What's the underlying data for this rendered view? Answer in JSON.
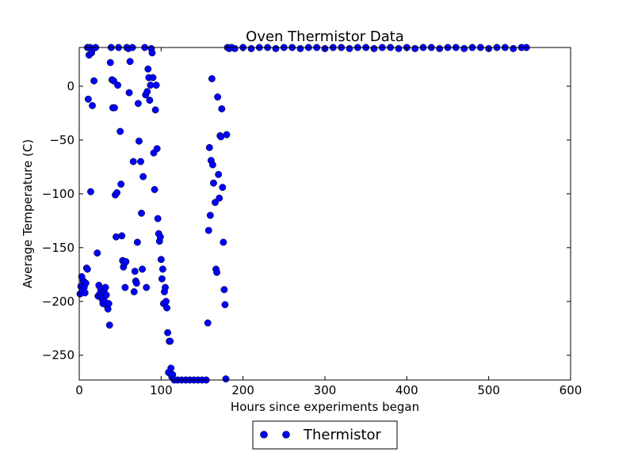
{
  "chart_data": {
    "type": "scatter",
    "title": "Oven Thermistor Data",
    "xlabel": "Hours since experiments began",
    "ylabel": "Average Temperature (C)",
    "xlim": [
      0,
      600
    ],
    "ylim": [
      -273,
      36
    ],
    "xticks": [
      0,
      100,
      200,
      300,
      400,
      500,
      600
    ],
    "yticks": [
      0,
      -50,
      -100,
      -150,
      -200,
      -250
    ],
    "grid": false,
    "legend_position": "below-center",
    "series": [
      {
        "name": "Thermistor",
        "color": "#0000ff",
        "marker": "circle",
        "points": [
          [
            1,
            -193
          ],
          [
            2,
            -186
          ],
          [
            3,
            -177
          ],
          [
            4,
            -190
          ],
          [
            5,
            -181
          ],
          [
            6,
            -187
          ],
          [
            7,
            -192
          ],
          [
            8,
            -183
          ],
          [
            9,
            -169
          ],
          [
            10,
            -170
          ],
          [
            10,
            36
          ],
          [
            11,
            -12
          ],
          [
            12,
            29
          ],
          [
            13,
            36
          ],
          [
            14,
            -98
          ],
          [
            15,
            31
          ],
          [
            16,
            -18
          ],
          [
            17,
            35
          ],
          [
            18,
            5
          ],
          [
            20,
            36
          ],
          [
            22,
            -155
          ],
          [
            23,
            -195
          ],
          [
            24,
            -185
          ],
          [
            25,
            -193
          ],
          [
            26,
            -188
          ],
          [
            27,
            -196
          ],
          [
            28,
            -198
          ],
          [
            29,
            -202
          ],
          [
            30,
            -190
          ],
          [
            31,
            -200
          ],
          [
            32,
            -187
          ],
          [
            33,
            -194
          ],
          [
            34,
            -204
          ],
          [
            35,
            -207
          ],
          [
            36,
            -202
          ],
          [
            37,
            -222
          ],
          [
            38,
            22
          ],
          [
            39,
            36
          ],
          [
            40,
            6
          ],
          [
            41,
            -20
          ],
          [
            42,
            5
          ],
          [
            43,
            -20
          ],
          [
            44,
            -101
          ],
          [
            45,
            -140
          ],
          [
            46,
            -99
          ],
          [
            47,
            1
          ],
          [
            48,
            36
          ],
          [
            50,
            -42
          ],
          [
            51,
            -91
          ],
          [
            52,
            -139
          ],
          [
            53,
            -162
          ],
          [
            54,
            -168
          ],
          [
            55,
            -165
          ],
          [
            56,
            -187
          ],
          [
            57,
            -163
          ],
          [
            58,
            36
          ],
          [
            60,
            35
          ],
          [
            61,
            -6
          ],
          [
            62,
            23
          ],
          [
            65,
            36
          ],
          [
            66,
            -70
          ],
          [
            67,
            -191
          ],
          [
            68,
            -172
          ],
          [
            69,
            -181
          ],
          [
            70,
            -183
          ],
          [
            71,
            -145
          ],
          [
            72,
            -16
          ],
          [
            73,
            -51
          ],
          [
            75,
            -70
          ],
          [
            76,
            -118
          ],
          [
            77,
            -170
          ],
          [
            78,
            -84
          ],
          [
            80,
            36
          ],
          [
            81,
            -8
          ],
          [
            82,
            -187
          ],
          [
            83,
            -5
          ],
          [
            84,
            16
          ],
          [
            85,
            8
          ],
          [
            86,
            -13
          ],
          [
            87,
            1
          ],
          [
            88,
            35
          ],
          [
            89,
            31
          ],
          [
            90,
            8
          ],
          [
            91,
            -62
          ],
          [
            92,
            -96
          ],
          [
            93,
            -22
          ],
          [
            94,
            1
          ],
          [
            95,
            -58
          ],
          [
            96,
            -123
          ],
          [
            97,
            -137
          ],
          [
            98,
            -144
          ],
          [
            99,
            -140
          ],
          [
            100,
            -161
          ],
          [
            101,
            -179
          ],
          [
            102,
            -170
          ],
          [
            103,
            -202
          ],
          [
            104,
            -191
          ],
          [
            105,
            -187
          ],
          [
            106,
            -200
          ],
          [
            107,
            -206
          ],
          [
            108,
            -229
          ],
          [
            109,
            -266
          ],
          [
            110,
            -237
          ],
          [
            111,
            -237
          ],
          [
            112,
            -262
          ],
          [
            113,
            -270
          ],
          [
            114,
            -268
          ],
          [
            116,
            -273
          ],
          [
            120,
            -273
          ],
          [
            125,
            -273
          ],
          [
            130,
            -273
          ],
          [
            135,
            -273
          ],
          [
            140,
            -273
          ],
          [
            145,
            -273
          ],
          [
            150,
            -273
          ],
          [
            155,
            -273
          ],
          [
            157,
            -220
          ],
          [
            158,
            -134
          ],
          [
            159,
            -57
          ],
          [
            160,
            -120
          ],
          [
            161,
            -69
          ],
          [
            162,
            7
          ],
          [
            163,
            -73
          ],
          [
            164,
            -90
          ],
          [
            166,
            -108
          ],
          [
            167,
            -170
          ],
          [
            168,
            -173
          ],
          [
            169,
            -10
          ],
          [
            170,
            -82
          ],
          [
            171,
            -104
          ],
          [
            172,
            -46
          ],
          [
            173,
            -47
          ],
          [
            174,
            -21
          ],
          [
            175,
            -94
          ],
          [
            176,
            -145
          ],
          [
            177,
            -189
          ],
          [
            178,
            -203
          ],
          [
            179,
            -272
          ],
          [
            180,
            -45
          ],
          [
            181,
            36
          ],
          [
            183,
            35
          ],
          [
            186,
            36
          ],
          [
            190,
            35
          ],
          [
            200,
            36
          ],
          [
            210,
            35
          ],
          [
            220,
            36
          ],
          [
            230,
            36
          ],
          [
            240,
            35
          ],
          [
            250,
            36
          ],
          [
            260,
            36
          ],
          [
            270,
            35
          ],
          [
            280,
            36
          ],
          [
            290,
            36
          ],
          [
            300,
            35
          ],
          [
            310,
            36
          ],
          [
            320,
            36
          ],
          [
            330,
            35
          ],
          [
            340,
            36
          ],
          [
            350,
            36
          ],
          [
            360,
            35
          ],
          [
            370,
            36
          ],
          [
            380,
            36
          ],
          [
            390,
            35
          ],
          [
            400,
            36
          ],
          [
            410,
            35
          ],
          [
            420,
            36
          ],
          [
            430,
            36
          ],
          [
            440,
            35
          ],
          [
            450,
            36
          ],
          [
            460,
            36
          ],
          [
            470,
            35
          ],
          [
            480,
            36
          ],
          [
            490,
            36
          ],
          [
            500,
            35
          ],
          [
            510,
            36
          ],
          [
            520,
            36
          ],
          [
            530,
            35
          ],
          [
            540,
            36
          ],
          [
            546,
            36
          ]
        ]
      }
    ]
  }
}
